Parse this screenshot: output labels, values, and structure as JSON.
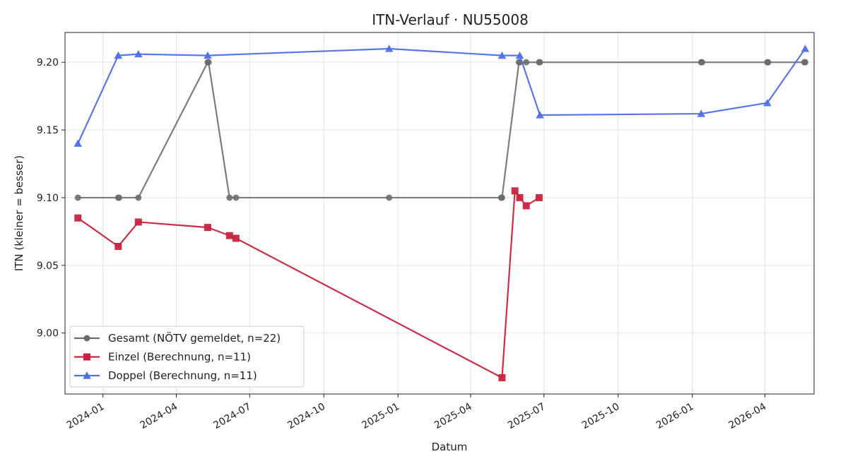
{
  "chart_data": {
    "type": "line",
    "title": "ITN-Verlauf · NU55008",
    "xlabel": "Datum",
    "ylabel": "ITN  (kleiner = besser)",
    "xlim": [
      "2023-11-15",
      "2026-06-01"
    ],
    "ylim": [
      8.955,
      9.222
    ],
    "y_ticks": [
      9.0,
      9.05,
      9.1,
      9.15,
      9.2
    ],
    "y_tick_labels": [
      "9.00",
      "9.05",
      "9.10",
      "9.15",
      "9.20"
    ],
    "x_ticks": [
      "2024-01-01",
      "2024-04-01",
      "2024-07-01",
      "2024-10-01",
      "2025-01-01",
      "2025-04-01",
      "2025-07-01",
      "2025-10-01",
      "2026-01-01",
      "2026-04-01"
    ],
    "x_tick_labels": [
      "2024-01",
      "2024-04",
      "2024-07",
      "2024-10",
      "2025-01",
      "2025-04",
      "2025-07",
      "2025-10",
      "2026-01",
      "2026-04"
    ],
    "grid": true,
    "legend_position": "lower-left",
    "series": [
      {
        "name": "Gesamt (NÖTV gemeldet, n=22)",
        "color": "#6b6b6b",
        "marker": "circle",
        "points": [
          {
            "x": "2023-12-01",
            "y": 9.1
          },
          {
            "x": "2024-01-20",
            "y": 9.1
          },
          {
            "x": "2024-01-21",
            "y": 9.1
          },
          {
            "x": "2024-02-14",
            "y": 9.1
          },
          {
            "x": "2024-05-10",
            "y": 9.2
          },
          {
            "x": "2024-05-11",
            "y": 9.2
          },
          {
            "x": "2024-06-06",
            "y": 9.1
          },
          {
            "x": "2024-06-14",
            "y": 9.1
          },
          {
            "x": "2024-12-21",
            "y": 9.1
          },
          {
            "x": "2025-05-09",
            "y": 9.1
          },
          {
            "x": "2025-05-10",
            "y": 9.1
          },
          {
            "x": "2025-05-31",
            "y": 9.2
          },
          {
            "x": "2025-06-01",
            "y": 9.2
          },
          {
            "x": "2025-06-09",
            "y": 9.2
          },
          {
            "x": "2025-06-25",
            "y": 9.2
          },
          {
            "x": "2025-06-26",
            "y": 9.2
          },
          {
            "x": "2026-01-12",
            "y": 9.2
          },
          {
            "x": "2026-01-13",
            "y": 9.2
          },
          {
            "x": "2026-04-04",
            "y": 9.2
          },
          {
            "x": "2026-04-05",
            "y": 9.2
          },
          {
            "x": "2026-05-20",
            "y": 9.2
          },
          {
            "x": "2026-05-21",
            "y": 9.2
          }
        ]
      },
      {
        "name": "Einzel (Berechnung, n=11)",
        "color": "#c8233f",
        "marker": "square",
        "points": [
          {
            "x": "2023-12-01",
            "y": 9.085
          },
          {
            "x": "2024-01-20",
            "y": 9.064
          },
          {
            "x": "2024-02-14",
            "y": 9.082
          },
          {
            "x": "2024-05-10",
            "y": 9.078
          },
          {
            "x": "2024-06-06",
            "y": 9.072
          },
          {
            "x": "2024-06-14",
            "y": 9.07
          },
          {
            "x": "2025-05-10",
            "y": 8.967
          },
          {
            "x": "2025-05-26",
            "y": 9.105
          },
          {
            "x": "2025-06-01",
            "y": 9.1
          },
          {
            "x": "2025-06-09",
            "y": 9.094
          },
          {
            "x": "2025-06-25",
            "y": 9.1
          }
        ]
      },
      {
        "name": "Doppel (Berechnung, n=11)",
        "color": "#4f6fe8",
        "marker": "triangle",
        "points": [
          {
            "x": "2023-12-01",
            "y": 9.14
          },
          {
            "x": "2024-01-20",
            "y": 9.205
          },
          {
            "x": "2024-02-14",
            "y": 9.206
          },
          {
            "x": "2024-05-10",
            "y": 9.205
          },
          {
            "x": "2024-12-21",
            "y": 9.21
          },
          {
            "x": "2025-05-10",
            "y": 9.205
          },
          {
            "x": "2025-06-01",
            "y": 9.205
          },
          {
            "x": "2025-06-26",
            "y": 9.161
          },
          {
            "x": "2026-01-12",
            "y": 9.162
          },
          {
            "x": "2026-04-04",
            "y": 9.17
          },
          {
            "x": "2026-05-21",
            "y": 9.21
          }
        ]
      }
    ]
  }
}
